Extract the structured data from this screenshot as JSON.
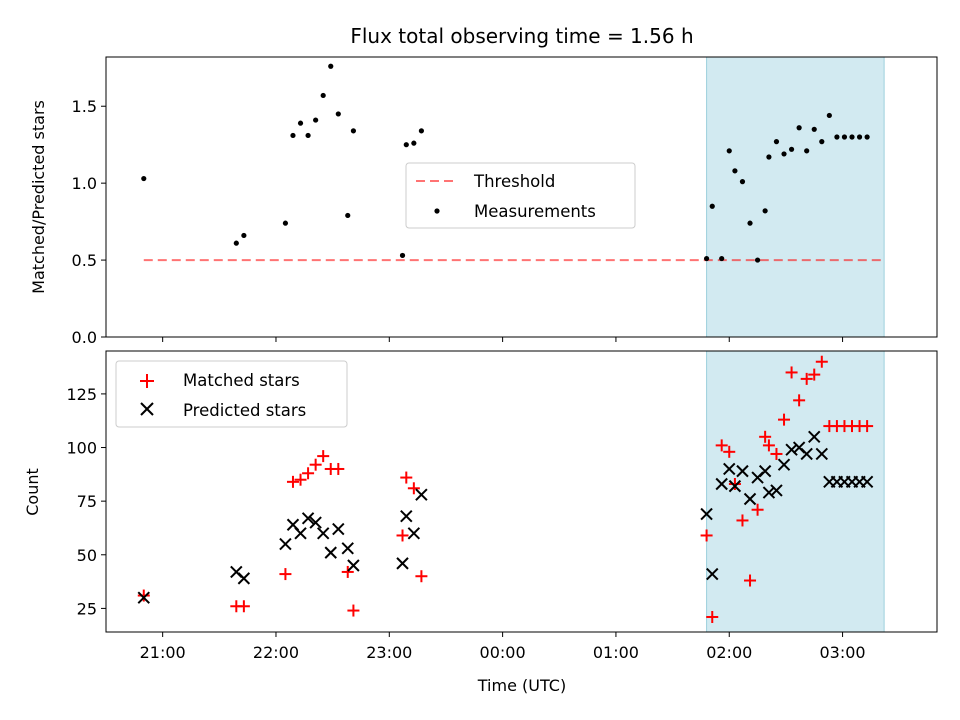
{
  "figure": {
    "title": "Flux total observing time = 1.56 h",
    "xlabel": "Time (UTC)"
  },
  "colors": {
    "highlight": "#add8e6",
    "threshold": "#ff0000",
    "measurement": "#000000",
    "matched": "#ff0000",
    "predicted": "#000000"
  },
  "chart_data": [
    {
      "type": "scatter",
      "ylabel": "Matched/Predicted stars",
      "xlim": [
        "20:30",
        "03:50"
      ],
      "ylim": [
        0,
        1.82
      ],
      "yticks": [
        "0.0",
        "0.5",
        "1.0",
        "1.5"
      ],
      "ytick_values": [
        0,
        0.5,
        1.0,
        1.5
      ],
      "highlight_span": [
        "01:48",
        "03:22"
      ],
      "legend": {
        "position": "center-right",
        "threshold": "Threshold",
        "measurements": "Measurements"
      },
      "threshold": {
        "name": "Threshold",
        "value": 0.5,
        "x_range": [
          "20:50",
          "03:22"
        ]
      },
      "series": [
        {
          "name": "Measurements",
          "marker": "dot",
          "x": [
            "20:50",
            "21:39",
            "21:43",
            "22:05",
            "22:09",
            "22:13",
            "22:17",
            "22:21",
            "22:25",
            "22:29",
            "22:33",
            "22:38",
            "22:41",
            "23:07",
            "23:09",
            "23:13",
            "23:17",
            "01:48",
            "01:51",
            "01:56",
            "02:00",
            "02:03",
            "02:07",
            "02:11",
            "02:15",
            "02:19",
            "02:21",
            "02:25",
            "02:29",
            "02:33",
            "02:37",
            "02:41",
            "02:45",
            "02:49",
            "02:53",
            "02:57",
            "03:01",
            "03:05",
            "03:09",
            "03:13"
          ],
          "y": [
            1.03,
            0.61,
            0.66,
            0.74,
            1.31,
            1.39,
            1.31,
            1.41,
            1.57,
            1.76,
            1.45,
            0.79,
            1.34,
            0.53,
            1.25,
            1.26,
            1.34,
            0.51,
            0.85,
            0.51,
            1.21,
            1.08,
            1.01,
            0.74,
            0.5,
            0.82,
            1.17,
            1.27,
            1.19,
            1.22,
            1.36,
            1.21,
            1.35,
            1.27,
            1.44,
            1.3,
            1.3,
            1.3,
            1.3,
            1.3
          ]
        }
      ]
    },
    {
      "type": "scatter",
      "ylabel": "Count",
      "xlim": [
        "20:30",
        "03:50"
      ],
      "ylim": [
        14,
        145
      ],
      "yticks": [
        "25",
        "50",
        "75",
        "100",
        "125"
      ],
      "ytick_values": [
        25,
        50,
        75,
        100,
        125
      ],
      "xticks": [
        "21:00",
        "22:00",
        "23:00",
        "00:00",
        "01:00",
        "02:00",
        "03:00"
      ],
      "highlight_span": [
        "01:48",
        "03:22"
      ],
      "legend": {
        "position": "top-left",
        "matched": "Matched stars",
        "predicted": "Predicted stars"
      },
      "series": [
        {
          "name": "Matched stars",
          "marker": "plus",
          "x": [
            "20:50",
            "21:39",
            "21:43",
            "22:05",
            "22:09",
            "22:13",
            "22:17",
            "22:21",
            "22:25",
            "22:29",
            "22:33",
            "22:38",
            "22:41",
            "23:07",
            "23:09",
            "23:13",
            "23:17",
            "01:48",
            "01:51",
            "01:56",
            "02:00",
            "02:03",
            "02:07",
            "02:11",
            "02:15",
            "02:19",
            "02:21",
            "02:25",
            "02:29",
            "02:33",
            "02:37",
            "02:41",
            "02:45",
            "02:49",
            "02:53",
            "02:57",
            "03:01",
            "03:05",
            "03:09",
            "03:13"
          ],
          "y": [
            31,
            26,
            26,
            41,
            84,
            85,
            88,
            92,
            96,
            90,
            90,
            42,
            24,
            59,
            86,
            81,
            40,
            59,
            21,
            101,
            98,
            83,
            66,
            38,
            71,
            105,
            101,
            97,
            113,
            135,
            122,
            132,
            134,
            140,
            110,
            110,
            110,
            110,
            110,
            110
          ]
        },
        {
          "name": "Predicted stars",
          "marker": "x",
          "x": [
            "20:50",
            "21:39",
            "21:43",
            "22:05",
            "22:09",
            "22:13",
            "22:17",
            "22:21",
            "22:25",
            "22:29",
            "22:33",
            "22:38",
            "22:41",
            "23:07",
            "23:09",
            "23:13",
            "23:17",
            "01:48",
            "01:51",
            "01:56",
            "02:00",
            "02:03",
            "02:07",
            "02:11",
            "02:15",
            "02:19",
            "02:21",
            "02:25",
            "02:29",
            "02:33",
            "02:37",
            "02:41",
            "02:45",
            "02:49",
            "02:53",
            "02:57",
            "03:01",
            "03:05",
            "03:09",
            "03:13"
          ],
          "y": [
            30,
            42,
            39,
            55,
            64,
            60,
            67,
            65,
            60,
            51,
            62,
            53,
            45,
            46,
            68,
            60,
            78,
            69,
            41,
            83,
            90,
            82,
            89,
            76,
            86,
            89,
            79,
            80,
            92,
            99,
            100,
            97,
            105,
            97,
            84,
            84,
            84,
            84,
            84,
            84
          ]
        }
      ]
    }
  ]
}
